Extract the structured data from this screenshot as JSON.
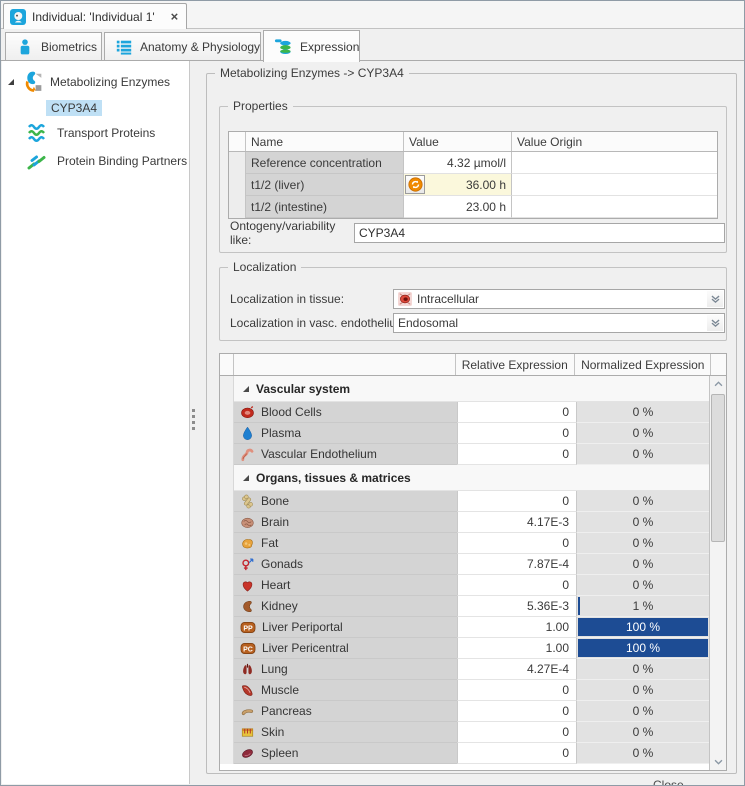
{
  "window": {
    "tab_title": "Individual: 'Individual 1'",
    "close_glyph": "×"
  },
  "tabs": [
    {
      "label": "Biometrics",
      "icon": "biometrics",
      "selected": false
    },
    {
      "label": "Anatomy & Physiology",
      "icon": "anatomy-physiology",
      "selected": false
    },
    {
      "label": "Expression",
      "icon": "expression",
      "selected": true
    }
  ],
  "sidebar": {
    "items": [
      {
        "label": "Metabolizing Enzymes",
        "icon": "metabolizing-enzymes",
        "expanded": true
      },
      {
        "label": "CYP3A4",
        "selected": true
      },
      {
        "label": "Transport Proteins",
        "icon": "transport-proteins"
      },
      {
        "label": "Protein Binding Partners",
        "icon": "protein-binding-partners"
      }
    ]
  },
  "main": {
    "group_title": "Metabolizing Enzymes -> CYP3A4",
    "properties": {
      "title": "Properties",
      "columns": [
        "Name",
        "Value",
        "Value Origin"
      ],
      "rows": [
        {
          "name": "Reference concentration",
          "value": "4.32 µmol/l",
          "value_origin": "",
          "highlight": false,
          "reset_icon": false
        },
        {
          "name": "t1/2 (liver)",
          "value": "36.00 h",
          "value_origin": "",
          "highlight": true,
          "reset_icon": true
        },
        {
          "name": "t1/2 (intestine)",
          "value": "23.00 h",
          "value_origin": "",
          "highlight": false,
          "reset_icon": false
        }
      ],
      "ontogeny_label": "Ontogeny/variability like:",
      "ontogeny_value": "CYP3A4"
    },
    "localization": {
      "title": "Localization",
      "tissue_label": "Localization in tissue:",
      "tissue_value": "Intracellular",
      "tissue_icon": "cell",
      "endothelium_label": "Localization in vasc. endothelium:",
      "endothelium_value": "Endosomal"
    },
    "expression": {
      "columns": [
        "Relative Expression",
        "Normalized Expression"
      ],
      "groups": [
        {
          "label": "Vascular system",
          "rows": [
            {
              "label": "Blood Cells",
              "icon": "blood-cells",
              "relative": "0",
              "normalized": "0 %",
              "pct": 0
            },
            {
              "label": "Plasma",
              "icon": "plasma",
              "relative": "0",
              "normalized": "0 %",
              "pct": 0
            },
            {
              "label": "Vascular Endothelium",
              "icon": "vascular-endothelium",
              "relative": "0",
              "normalized": "0 %",
              "pct": 0
            }
          ]
        },
        {
          "label": "Organs, tissues & matrices",
          "rows": [
            {
              "label": "Bone",
              "icon": "bone",
              "relative": "0",
              "normalized": "0 %",
              "pct": 0
            },
            {
              "label": "Brain",
              "icon": "brain",
              "relative": "4.17E-3",
              "normalized": "0 %",
              "pct": 0
            },
            {
              "label": "Fat",
              "icon": "fat",
              "relative": "0",
              "normalized": "0 %",
              "pct": 0
            },
            {
              "label": "Gonads",
              "icon": "gonads",
              "relative": "7.87E-4",
              "normalized": "0 %",
              "pct": 0
            },
            {
              "label": "Heart",
              "icon": "heart",
              "relative": "0",
              "normalized": "0 %",
              "pct": 0
            },
            {
              "label": "Kidney",
              "icon": "kidney",
              "relative": "5.36E-3",
              "normalized": "1 %",
              "pct": 1
            },
            {
              "label": "Liver Periportal",
              "icon": "liver-periportal",
              "relative": "1.00",
              "normalized": "100 %",
              "pct": 100
            },
            {
              "label": "Liver Pericentral",
              "icon": "liver-pericentral",
              "relative": "1.00",
              "normalized": "100 %",
              "pct": 100
            },
            {
              "label": "Lung",
              "icon": "lung",
              "relative": "4.27E-4",
              "normalized": "0 %",
              "pct": 0
            },
            {
              "label": "Muscle",
              "icon": "muscle",
              "relative": "0",
              "normalized": "0 %",
              "pct": 0
            },
            {
              "label": "Pancreas",
              "icon": "pancreas",
              "relative": "0",
              "normalized": "0 %",
              "pct": 0
            },
            {
              "label": "Skin",
              "icon": "skin",
              "relative": "0",
              "normalized": "0 %",
              "pct": 0
            },
            {
              "label": "Spleen",
              "icon": "spleen",
              "relative": "0",
              "normalized": "0 %",
              "pct": 0
            }
          ]
        }
      ]
    },
    "clipped_button_label": "Close"
  },
  "colors": {
    "accent_blue": "#1CA5DC",
    "bar_blue": "#1D4C94",
    "selection_blue": "#BFE0F5",
    "highlight_cream": "#FBF8DC",
    "reset_orange": "#F08A00"
  }
}
